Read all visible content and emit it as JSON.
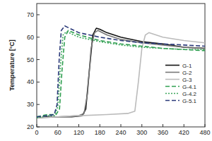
{
  "chart_data": {
    "type": "line",
    "y_label": "Temperature [°C]",
    "xlim": [
      0,
      480
    ],
    "xticks": [
      0,
      60,
      120,
      180,
      240,
      300,
      360,
      420,
      480
    ],
    "ylim": [
      20,
      75
    ],
    "yticks": [
      20,
      30,
      40,
      50,
      60,
      70
    ],
    "legend": "right",
    "series": [
      {
        "name": "G-1",
        "color": "#111111",
        "line_style": "solid",
        "x": [
          0,
          30,
          60,
          100,
          130,
          140,
          150,
          160,
          170,
          180,
          200,
          240,
          300,
          360,
          420,
          480
        ],
        "values": [
          24,
          24.5,
          24.5,
          24.5,
          25,
          28,
          45,
          61,
          64,
          63.5,
          62,
          60,
          58,
          57,
          55.5,
          55
        ]
      },
      {
        "name": "G-2",
        "color": "#777777",
        "line_style": "solid",
        "x": [
          0,
          60,
          120,
          135,
          145,
          155,
          165,
          175,
          200,
          240,
          300,
          360,
          420,
          480
        ],
        "values": [
          24,
          24.5,
          25,
          26,
          35,
          55,
          62,
          63,
          61,
          59,
          57.5,
          56.5,
          55.5,
          55
        ]
      },
      {
        "name": "G-3",
        "color": "#bbbbbb",
        "line_style": "solid",
        "x": [
          0,
          60,
          120,
          200,
          260,
          280,
          290,
          300,
          310,
          320,
          360,
          420,
          480
        ],
        "values": [
          24,
          24.5,
          25,
          25.5,
          26,
          27,
          40,
          55,
          61,
          62,
          60,
          58.5,
          57.5
        ]
      },
      {
        "name": "G-4.1",
        "color": "#2e9e4f",
        "line_style": "dashed",
        "x": [
          0,
          30,
          55,
          65,
          72,
          80,
          90,
          120,
          180,
          240,
          300,
          360,
          420,
          480
        ],
        "values": [
          24.5,
          25.5,
          25.5,
          28,
          45,
          60,
          63,
          61,
          58.5,
          57,
          56,
          55,
          54.5,
          54
        ]
      },
      {
        "name": "G-4.2",
        "color": "#3aa55a",
        "line_style": "dotted",
        "x": [
          0,
          30,
          50,
          60,
          68,
          75,
          85,
          120,
          180,
          240,
          300,
          360,
          420,
          480
        ],
        "values": [
          24,
          25,
          25,
          29,
          48,
          61,
          62.5,
          60,
          58,
          56.5,
          55.5,
          55,
          54.5,
          54.5
        ]
      },
      {
        "name": "G-5.1",
        "color": "#2b3a7a",
        "line_style": "dashed",
        "x": [
          0,
          30,
          50,
          58,
          64,
          70,
          80,
          120,
          180,
          240,
          300,
          360,
          420,
          480
        ],
        "values": [
          24.5,
          25,
          25.5,
          30,
          50,
          63,
          65,
          62,
          60,
          58.5,
          57.5,
          57,
          56.5,
          56
        ]
      }
    ]
  }
}
